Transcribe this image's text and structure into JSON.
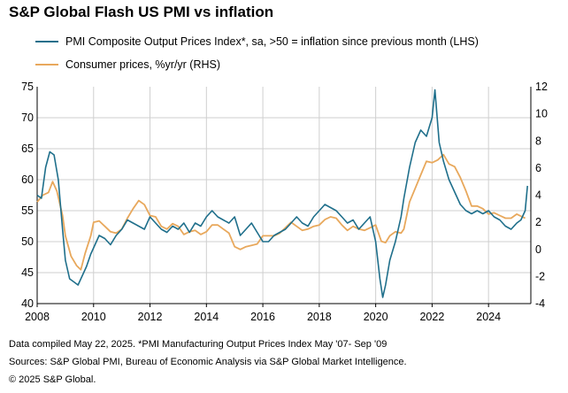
{
  "title": "S&P Global Flash US PMI vs inflation",
  "colors": {
    "pmi": "#1f6f8b",
    "cpi": "#e8a85c",
    "axis": "#000000",
    "grid": "#cfcfcf"
  },
  "footer": {
    "line1": "Data compiled May 22, 2025.  *PMI Manufacturing Output Prices Index May '07- Sep '09",
    "line2": "Sources: S&P Global PMI,  Bureau of Economic Analysis via S&P Global Market Intelligence.",
    "line3": "© 2025 S&P Global."
  },
  "chart_data": {
    "type": "line",
    "title": "S&P Global Flash US PMI vs inflation",
    "x_range": [
      2008,
      2025.5
    ],
    "x_ticks": [
      2008,
      2010,
      2012,
      2014,
      2016,
      2018,
      2020,
      2022,
      2024
    ],
    "x_tick_labels": [
      "2008",
      "2010",
      "2012",
      "2014",
      "2016",
      "2018",
      "2020",
      "2022",
      "2024"
    ],
    "y_left": {
      "range": [
        40,
        75
      ],
      "ticks": [
        40,
        45,
        50,
        55,
        60,
        65,
        70,
        75
      ],
      "tick_labels": [
        "40",
        "45",
        "50",
        "55",
        "60",
        "65",
        "70",
        "75"
      ]
    },
    "y_right": {
      "range": [
        -4,
        12
      ],
      "ticks": [
        -4,
        -2,
        0,
        2,
        4,
        6,
        8,
        10,
        12
      ],
      "tick_labels": [
        "-4",
        "-2",
        "0",
        "2",
        "4",
        "6",
        "8",
        "10",
        "12"
      ]
    },
    "grid": true,
    "legend_position": "top-left",
    "series": [
      {
        "name": "PMI Composite Output Prices Index*, sa, >50 = inflation since previous month (LHS)",
        "axis": "left",
        "x": [
          2008.0,
          2008.15,
          2008.3,
          2008.45,
          2008.6,
          2008.75,
          2008.9,
          2009.0,
          2009.15,
          2009.3,
          2009.45,
          2009.6,
          2009.75,
          2009.9,
          2010.0,
          2010.2,
          2010.4,
          2010.6,
          2010.8,
          2011.0,
          2011.2,
          2011.4,
          2011.6,
          2011.8,
          2012.0,
          2012.2,
          2012.4,
          2012.6,
          2012.8,
          2013.0,
          2013.2,
          2013.4,
          2013.6,
          2013.8,
          2014.0,
          2014.2,
          2014.4,
          2014.6,
          2014.8,
          2015.0,
          2015.2,
          2015.4,
          2015.6,
          2015.8,
          2016.0,
          2016.2,
          2016.4,
          2016.6,
          2016.8,
          2017.0,
          2017.2,
          2017.4,
          2017.6,
          2017.8,
          2018.0,
          2018.2,
          2018.4,
          2018.6,
          2018.8,
          2019.0,
          2019.2,
          2019.4,
          2019.6,
          2019.8,
          2020.0,
          2020.15,
          2020.25,
          2020.35,
          2020.5,
          2020.7,
          2020.9,
          2021.0,
          2021.2,
          2021.4,
          2021.6,
          2021.8,
          2022.0,
          2022.1,
          2022.25,
          2022.4,
          2022.6,
          2022.8,
          2023.0,
          2023.2,
          2023.4,
          2023.6,
          2023.8,
          2024.0,
          2024.2,
          2024.4,
          2024.6,
          2024.8,
          2025.0,
          2025.15,
          2025.3,
          2025.38
        ],
        "values": [
          57.5,
          57,
          62,
          64.5,
          64,
          60,
          52,
          47,
          44,
          43.5,
          43,
          44.5,
          46,
          48,
          49,
          51,
          50.5,
          49.5,
          51,
          52,
          53.5,
          53,
          52.5,
          52,
          54,
          53,
          52,
          51.5,
          52.5,
          52,
          53,
          51.5,
          53,
          52.5,
          54,
          55,
          54,
          53.5,
          53,
          54,
          51,
          52,
          53,
          51.5,
          50,
          50,
          51,
          51.5,
          52,
          53,
          54,
          53,
          52.5,
          54,
          55,
          56,
          55.5,
          55,
          54,
          53,
          53.5,
          52,
          53,
          54,
          50,
          44,
          41,
          43,
          47,
          50,
          54,
          57,
          62,
          66,
          68,
          67,
          70,
          74.5,
          66,
          63,
          60,
          58,
          56,
          55,
          54.5,
          55,
          54.5,
          55,
          54,
          53.5,
          52.5,
          52,
          53,
          53.5,
          55,
          59
        ]
      },
      {
        "name": "Consumer prices, %yr/yr (RHS)",
        "axis": "right",
        "x": [
          2008.0,
          2008.2,
          2008.4,
          2008.55,
          2008.7,
          2008.9,
          2009.0,
          2009.2,
          2009.4,
          2009.55,
          2009.7,
          2009.9,
          2010.0,
          2010.2,
          2010.4,
          2010.6,
          2010.8,
          2011.0,
          2011.2,
          2011.4,
          2011.6,
          2011.8,
          2012.0,
          2012.2,
          2012.4,
          2012.6,
          2012.8,
          2013.0,
          2013.2,
          2013.4,
          2013.6,
          2013.8,
          2014.0,
          2014.2,
          2014.4,
          2014.6,
          2014.8,
          2015.0,
          2015.2,
          2015.4,
          2015.6,
          2015.8,
          2016.0,
          2016.2,
          2016.4,
          2016.6,
          2016.8,
          2017.0,
          2017.2,
          2017.4,
          2017.6,
          2017.8,
          2018.0,
          2018.2,
          2018.4,
          2018.6,
          2018.8,
          2019.0,
          2019.2,
          2019.4,
          2019.6,
          2019.8,
          2020.0,
          2020.2,
          2020.35,
          2020.5,
          2020.7,
          2020.9,
          2021.0,
          2021.2,
          2021.4,
          2021.6,
          2021.8,
          2022.0,
          2022.2,
          2022.4,
          2022.6,
          2022.8,
          2023.0,
          2023.2,
          2023.4,
          2023.6,
          2023.8,
          2024.0,
          2024.2,
          2024.4,
          2024.6,
          2024.8,
          2025.0,
          2025.2,
          2025.3
        ],
        "values": [
          3.5,
          4,
          4.2,
          5,
          4.3,
          2.5,
          1,
          -0.5,
          -1.2,
          -1.5,
          -0.3,
          1,
          2,
          2.1,
          1.7,
          1.3,
          1.2,
          1.5,
          2.3,
          3,
          3.6,
          3.3,
          2.5,
          2.4,
          1.7,
          1.5,
          1.9,
          1.7,
          1.1,
          1.3,
          1.4,
          1.1,
          1.3,
          1.8,
          1.8,
          1.5,
          1.2,
          0.2,
          0,
          0.2,
          0.3,
          0.4,
          1,
          1,
          1,
          1.2,
          1.6,
          2,
          1.7,
          1.4,
          1.5,
          1.7,
          1.8,
          2.2,
          2.4,
          2.3,
          1.8,
          1.4,
          1.7,
          1.5,
          1.4,
          1.6,
          1.8,
          0.6,
          0.5,
          1,
          1.3,
          1.2,
          1.5,
          3.5,
          4.5,
          5.5,
          6.5,
          6.4,
          6.6,
          7,
          6.3,
          6.1,
          5.3,
          4.3,
          3.2,
          3.2,
          3,
          2.6,
          2.7,
          2.5,
          2.3,
          2.3,
          2.6,
          2.4,
          2.3
        ]
      }
    ]
  }
}
